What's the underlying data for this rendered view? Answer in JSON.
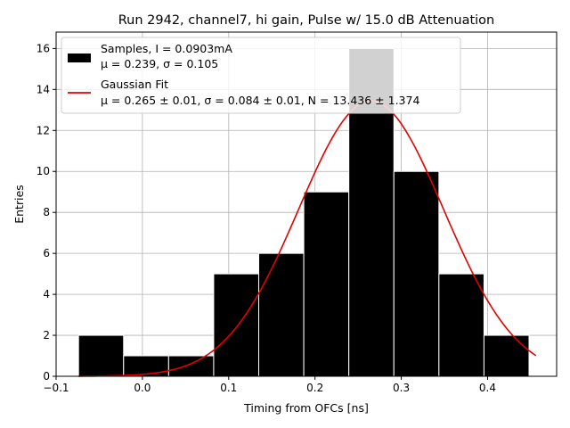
{
  "chart_data": {
    "type": "bar",
    "title": "Run 2942, channel7, hi gain, Pulse w/ 15.0 dB Attenuation",
    "xlabel": "Timing from OFCs [ns]",
    "ylabel": "Entries",
    "xlim": [
      -0.1,
      0.48
    ],
    "ylim": [
      0,
      16.8
    ],
    "xticks": [
      -0.1,
      0.0,
      0.1,
      0.2,
      0.3,
      0.4
    ],
    "xtick_labels": [
      "−0.1",
      "0.0",
      "0.1",
      "0.2",
      "0.3",
      "0.4"
    ],
    "yticks": [
      0,
      2,
      4,
      6,
      8,
      10,
      12,
      14,
      16
    ],
    "yticks_labels": [
      "0",
      "2",
      "4",
      "6",
      "8",
      "10",
      "12",
      "14",
      "16"
    ],
    "grid": true,
    "legend_position": "top-left",
    "histogram": {
      "bin_edges": [
        -0.074,
        -0.0218,
        0.0304,
        0.0826,
        0.1348,
        0.187,
        0.2392,
        0.2914,
        0.3436,
        0.3958,
        0.448
      ],
      "counts": [
        2,
        1,
        1,
        5,
        6,
        9,
        16,
        10,
        5,
        2
      ],
      "color": "#000000",
      "edge_color": "#ffffff"
    },
    "gaussian_fit": {
      "mu": 0.265,
      "sigma": 0.084,
      "N": 13.436,
      "x_range": [
        -0.074,
        0.456
      ],
      "color": "#e50000"
    },
    "legend": [
      {
        "label": "Samples, I = 0.0903mA",
        "label2": "μ = 0.239, σ = 0.105",
        "swatch": "bar"
      },
      {
        "label": "Gaussian Fit",
        "label2": "μ = 0.265 ± 0.01, σ = 0.084 ± 0.01, N = 13.436 ± 1.374",
        "swatch": "line"
      }
    ]
  }
}
